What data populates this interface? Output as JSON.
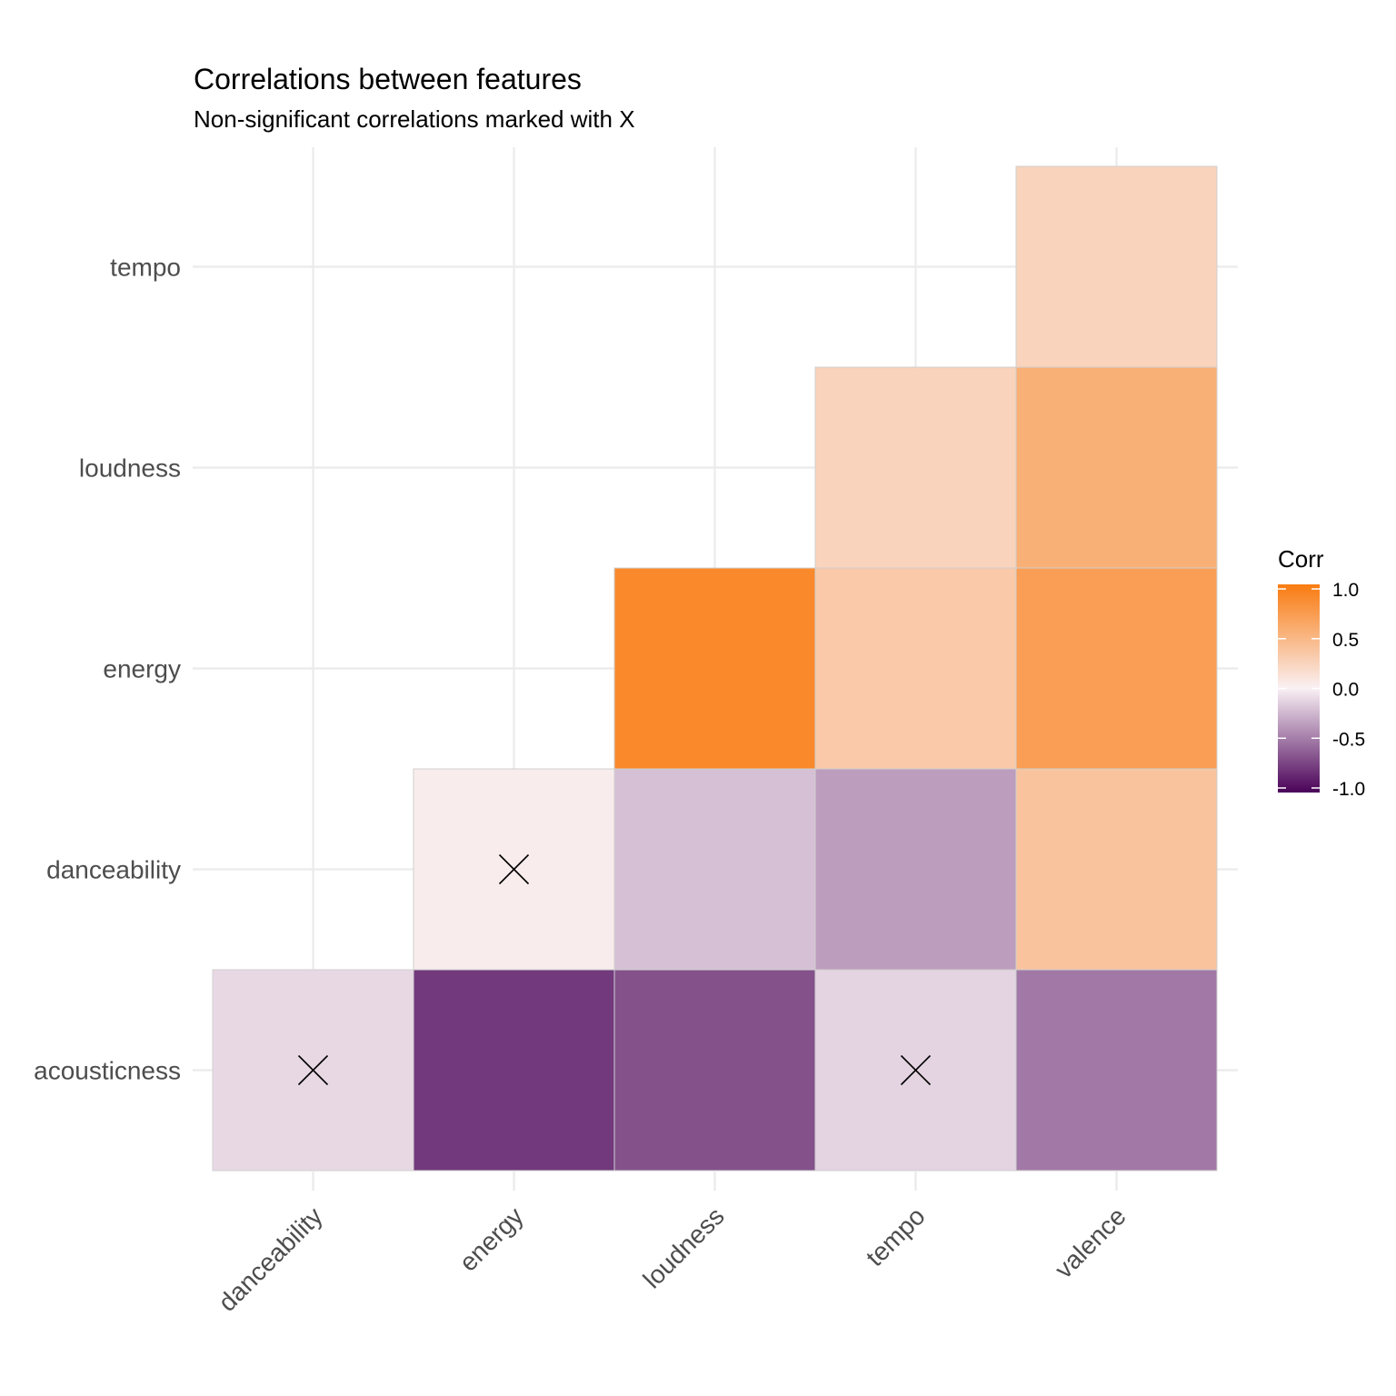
{
  "chart_data": {
    "type": "heatmap",
    "title": "Correlations between features",
    "subtitle": "Non-significant correlations marked with X",
    "x_categories": [
      "danceability",
      "energy",
      "loudness",
      "tempo",
      "valence"
    ],
    "y_categories": [
      "acousticness",
      "danceability",
      "energy",
      "loudness",
      "tempo"
    ],
    "cells": [
      {
        "x": "danceability",
        "y": "acousticness",
        "value": -0.1,
        "nonsignificant": true
      },
      {
        "x": "energy",
        "y": "acousticness",
        "value": -0.77,
        "nonsignificant": false
      },
      {
        "x": "loudness",
        "y": "acousticness",
        "value": -0.67,
        "nonsignificant": false
      },
      {
        "x": "tempo",
        "y": "acousticness",
        "value": -0.12,
        "nonsignificant": true
      },
      {
        "x": "valence",
        "y": "acousticness",
        "value": -0.5,
        "nonsignificant": false
      },
      {
        "x": "energy",
        "y": "danceability",
        "value": 0.03,
        "nonsignificant": true
      },
      {
        "x": "loudness",
        "y": "danceability",
        "value": -0.2,
        "nonsignificant": false
      },
      {
        "x": "tempo",
        "y": "danceability",
        "value": -0.35,
        "nonsignificant": false
      },
      {
        "x": "valence",
        "y": "danceability",
        "value": 0.38,
        "nonsignificant": false
      },
      {
        "x": "loudness",
        "y": "energy",
        "value": 0.88,
        "nonsignificant": false
      },
      {
        "x": "tempo",
        "y": "energy",
        "value": 0.33,
        "nonsignificant": false
      },
      {
        "x": "valence",
        "y": "energy",
        "value": 0.7,
        "nonsignificant": false
      },
      {
        "x": "tempo",
        "y": "loudness",
        "value": 0.25,
        "nonsignificant": false
      },
      {
        "x": "valence",
        "y": "loudness",
        "value": 0.55,
        "nonsignificant": false
      },
      {
        "x": "valence",
        "y": "tempo",
        "value": 0.25,
        "nonsignificant": false
      }
    ],
    "legend": {
      "title": "Corr",
      "placement": "right",
      "ticks": [
        1.0,
        0.5,
        0.0,
        -0.5,
        -1.0
      ],
      "tick_labels": [
        "1.0",
        "0.5",
        "0.0",
        "-0.5",
        "-1.0"
      ],
      "range": [
        -1,
        1
      ]
    },
    "colors": {
      "high": "#f97b10",
      "mid": "#f9f0f4",
      "low": "#4a0258",
      "marker": "#000000",
      "grid": "#ebebeb",
      "tick_text": "#4d4d4d"
    },
    "grid": true
  }
}
